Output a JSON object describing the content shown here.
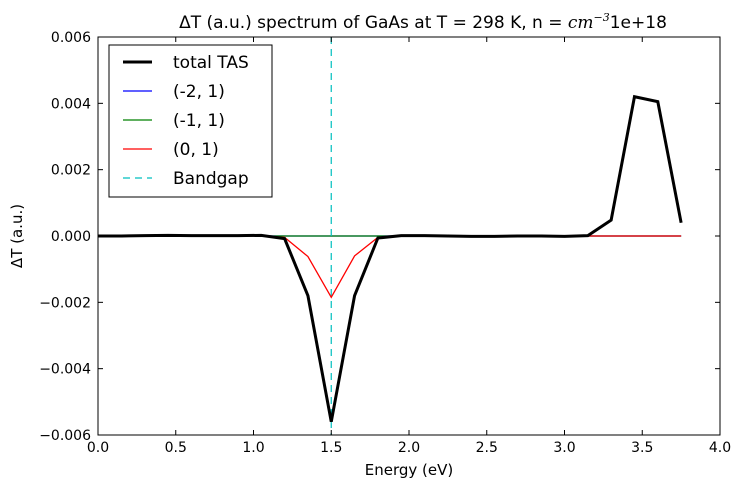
{
  "chart_data": {
    "type": "line",
    "title_prefix": "ΔT (a.u.) spectrum of GaAs at T = 298 K, n = ",
    "title_unit": "cm",
    "title_exponent": "−3",
    "title_suffix": "1e+18",
    "xlabel": "Energy (eV)",
    "ylabel": "ΔT (a.u.)",
    "xlim": [
      0.0,
      4.0
    ],
    "ylim": [
      -0.006,
      0.006
    ],
    "x_ticks": [
      0.0,
      0.5,
      1.0,
      1.5,
      2.0,
      2.5,
      3.0,
      3.5,
      4.0
    ],
    "x_tick_labels": [
      "0.0",
      "0.5",
      "1.0",
      "1.5",
      "2.0",
      "2.5",
      "3.0",
      "3.5",
      "4.0"
    ],
    "y_ticks": [
      -0.006,
      -0.004,
      -0.002,
      0.0,
      0.002,
      0.004,
      0.006
    ],
    "y_tick_labels": [
      "−0.006",
      "−0.004",
      "−0.002",
      "0.000",
      "0.002",
      "0.004",
      "0.006"
    ],
    "grid": false,
    "legend_position": "top-left",
    "series": [
      {
        "name": "total TAS",
        "color": "#000000",
        "style": "solid-thick",
        "x": [
          0.0,
          0.15,
          0.3,
          0.45,
          0.6,
          0.75,
          0.9,
          1.05,
          1.2,
          1.35,
          1.5,
          1.65,
          1.8,
          1.95,
          2.1,
          2.25,
          2.4,
          2.55,
          2.7,
          2.85,
          3.0,
          3.15,
          3.3,
          3.45,
          3.6,
          3.75
        ],
        "y": [
          0.0,
          0.0,
          1e-05,
          2e-05,
          1e-05,
          1e-05,
          1e-05,
          2e-05,
          -8e-05,
          -0.0018,
          -0.0056,
          -0.0018,
          -6e-05,
          1e-05,
          1e-05,
          0.0,
          -1e-05,
          -1e-05,
          0.0,
          0.0,
          -1e-05,
          1e-05,
          0.00048,
          0.0042,
          0.00405,
          0.0004
        ]
      },
      {
        "name": "(-2, 1)",
        "color": "#0000ff",
        "style": "solid",
        "x": [
          0.0,
          0.15,
          0.3,
          0.45,
          0.6,
          0.75,
          0.9,
          1.05,
          1.2,
          1.35,
          1.5,
          1.65,
          1.8,
          1.95,
          2.1,
          2.25,
          2.4,
          2.55,
          2.7,
          2.85,
          3.0,
          3.15,
          3.3,
          3.45,
          3.6,
          3.75
        ],
        "y": [
          0.0,
          0.0,
          0.0,
          0.0,
          0.0,
          0.0,
          0.0,
          0.0,
          0.0,
          0.0,
          0.0,
          0.0,
          0.0,
          0.0,
          0.0,
          0.0,
          0.0,
          0.0,
          0.0,
          0.0,
          0.0,
          0.0,
          0.0,
          0.0,
          0.0,
          0.0
        ]
      },
      {
        "name": "(-1, 1)",
        "color": "#008000",
        "style": "solid",
        "x": [
          0.0,
          0.15,
          0.3,
          0.45,
          0.6,
          0.75,
          0.9,
          1.05,
          1.2,
          1.35,
          1.5,
          1.65,
          1.8,
          1.95,
          2.1,
          2.25,
          2.4,
          2.55,
          2.7,
          2.85,
          3.0,
          3.15,
          3.3,
          3.45,
          3.6,
          3.75
        ],
        "y": [
          0.0,
          0.0,
          0.0,
          0.0,
          0.0,
          0.0,
          0.0,
          0.0,
          0.0,
          0.0,
          0.0,
          0.0,
          0.0,
          0.0,
          0.0,
          0.0,
          0.0,
          0.0,
          0.0,
          0.0,
          0.0,
          0.0,
          0.0,
          0.0,
          0.0,
          0.0
        ]
      },
      {
        "name": "(0, 1)",
        "color": "#ff0000",
        "style": "solid",
        "x": [
          0.0,
          0.15,
          0.3,
          0.45,
          0.6,
          0.75,
          0.9,
          1.05,
          1.2,
          1.35,
          1.5,
          1.65,
          1.8,
          1.95,
          2.1,
          2.25,
          2.4,
          2.55,
          2.7,
          2.85,
          3.0,
          3.15,
          3.3,
          3.45,
          3.6,
          3.75
        ],
        "y": [
          0.0,
          0.0,
          1e-05,
          1e-05,
          0.0,
          0.0,
          0.0,
          0.0,
          -4e-05,
          -0.00062,
          -0.00185,
          -0.0006,
          -4e-05,
          1e-05,
          1e-05,
          0.0,
          0.0,
          0.0,
          0.0,
          0.0,
          0.0,
          0.0,
          0.0,
          0.0,
          0.0,
          0.0
        ]
      },
      {
        "name": "Bandgap",
        "color": "#00bfbf",
        "style": "dashed",
        "vertical_x": 1.5
      }
    ]
  }
}
